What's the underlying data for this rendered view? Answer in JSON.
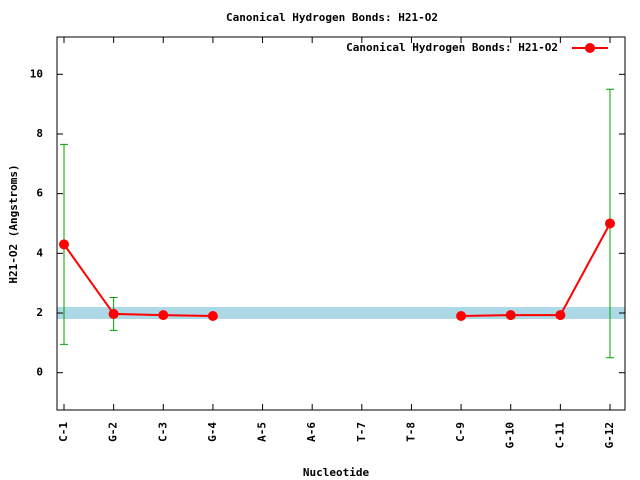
{
  "chart_data": {
    "type": "line",
    "title": "Canonical Hydrogen Bonds: H21-O2",
    "x_label": "Nucleotide",
    "y_label": "H21-O2 (Angstroms)",
    "categories": [
      "C-1",
      "G-2",
      "C-3",
      "G-4",
      "A-5",
      "A-6",
      "T-7",
      "T-8",
      "C-9",
      "G-10",
      "C-11",
      "G-12"
    ],
    "series": [
      {
        "name": "Canonical Hydrogen Bonds: H21-O2",
        "color": "#ff0000",
        "values": [
          4.3,
          1.97,
          1.93,
          1.9,
          null,
          null,
          null,
          null,
          1.9,
          1.93,
          1.93,
          5.0
        ],
        "errors": [
          3.35,
          0.55,
          null,
          null,
          null,
          null,
          null,
          null,
          null,
          null,
          null,
          4.5
        ],
        "error_color": "#00a000"
      }
    ],
    "reference_band": [
      1.8,
      2.2
    ],
    "band_color": "#add8e6",
    "ylim": [
      -1.25,
      11.25
    ],
    "yticks": [
      0,
      2,
      4,
      6,
      8,
      10
    ],
    "legend": "top-right"
  }
}
